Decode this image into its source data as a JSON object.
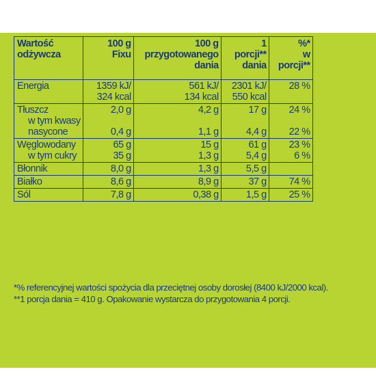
{
  "headers": {
    "nutrient": [
      "Wartość",
      "odżywcza"
    ],
    "per100_fix": [
      "100 g",
      "Fixu"
    ],
    "per100_prepared": [
      "100 g",
      "przygotowanego",
      "dania"
    ],
    "per_portion": [
      "1",
      "porcji**",
      "dania"
    ],
    "ri_percent": [
      "%*",
      "w",
      "porcji**"
    ]
  },
  "rows": [
    {
      "name": [
        "Energia"
      ],
      "per100_fix": [
        "1359 kJ/",
        "324 kcal"
      ],
      "per100_prepared": [
        "561 kJ/",
        "134 kcal"
      ],
      "per_portion": [
        "2301 kJ/",
        "550 kcal"
      ],
      "ri_percent": [
        "28 %"
      ]
    },
    {
      "name": [
        "Tłuszcz",
        "w tym kwasy",
        "nasycone"
      ],
      "per100_fix": [
        "2,0 g",
        "",
        "0,4 g"
      ],
      "per100_prepared": [
        "4,2 g",
        "",
        "1,1 g"
      ],
      "per_portion": [
        "17 g",
        "",
        "4,4 g"
      ],
      "ri_percent": [
        "24 %",
        "",
        "22 %"
      ]
    },
    {
      "name": [
        "Węglowodany",
        "w tym cukry"
      ],
      "per100_fix": [
        "65 g",
        "35 g"
      ],
      "per100_prepared": [
        "15 g",
        "1,3 g"
      ],
      "per_portion": [
        "61 g",
        "5,4 g"
      ],
      "ri_percent": [
        "23 %",
        "6 %"
      ]
    },
    {
      "name": [
        "Błonnik"
      ],
      "per100_fix": [
        "8,0 g"
      ],
      "per100_prepared": [
        "1,3 g"
      ],
      "per_portion": [
        "5,5 g"
      ],
      "ri_percent": [
        ""
      ]
    },
    {
      "name": [
        "Białko"
      ],
      "per100_fix": [
        "8,6 g"
      ],
      "per100_prepared": [
        "8,9 g"
      ],
      "per_portion": [
        "37 g"
      ],
      "ri_percent": [
        "74 %"
      ]
    },
    {
      "name": [
        "Sól"
      ],
      "per100_fix": [
        "7,8 g"
      ],
      "per100_prepared": [
        "0,38 g"
      ],
      "per_portion": [
        "1,5 g"
      ],
      "ri_percent": [
        "25 %"
      ]
    }
  ],
  "footnotes": [
    "*% referencyjnej wartości spożycia dla przeciętnej osoby dorosłej (8400 kJ/2000 kcal).",
    "**1 porcja dania = 410 g. Opakowanie wystarcza do przygotowania 4 porcji."
  ],
  "colors": {
    "background": "#b7d433",
    "text": "#1b3a7a"
  }
}
